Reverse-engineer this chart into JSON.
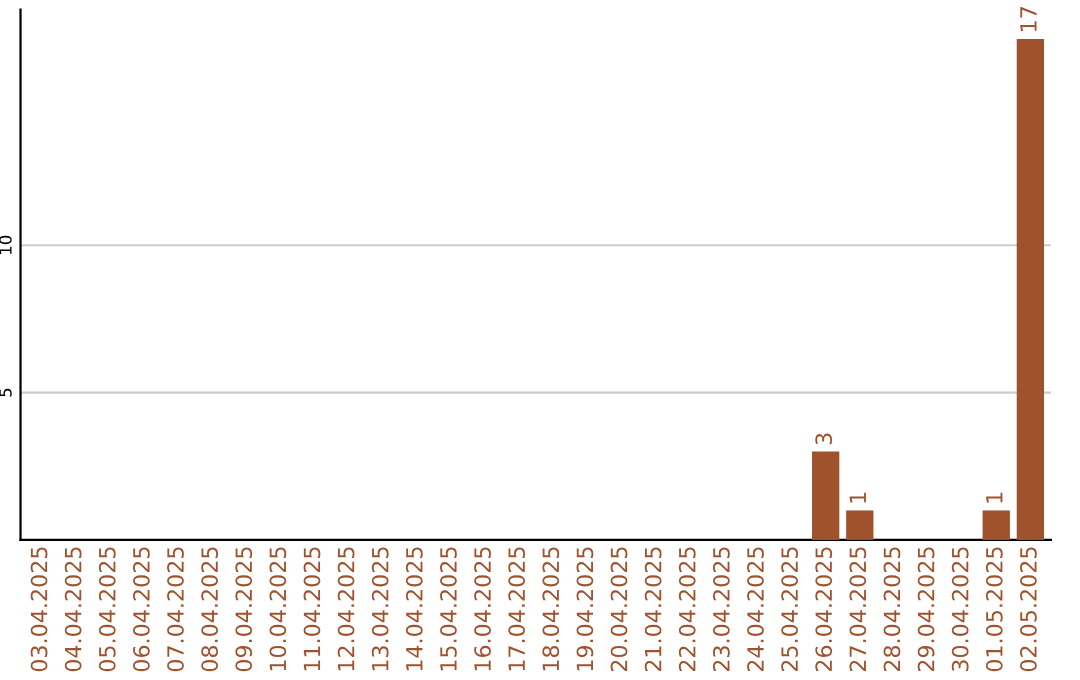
{
  "chart_data": {
    "type": "bar",
    "categories": [
      "03.04.2025",
      "04.04.2025",
      "05.04.2025",
      "06.04.2025",
      "07.04.2025",
      "08.04.2025",
      "09.04.2025",
      "10.04.2025",
      "11.04.2025",
      "12.04.2025",
      "13.04.2025",
      "14.04.2025",
      "15.04.2025",
      "16.04.2025",
      "17.04.2025",
      "18.04.2025",
      "19.04.2025",
      "20.04.2025",
      "21.04.2025",
      "22.04.2025",
      "23.04.2025",
      "24.04.2025",
      "25.04.2025",
      "26.04.2025",
      "27.04.2025",
      "28.04.2025",
      "29.04.2025",
      "30.04.2025",
      "01.05.2025",
      "02.05.2025"
    ],
    "values": [
      0,
      0,
      0,
      0,
      0,
      0,
      0,
      0,
      0,
      0,
      0,
      0,
      0,
      0,
      0,
      0,
      0,
      0,
      0,
      0,
      0,
      0,
      0,
      3,
      1,
      0,
      0,
      0,
      1,
      17
    ],
    "value_labels": [
      null,
      null,
      null,
      null,
      null,
      null,
      null,
      null,
      null,
      null,
      null,
      null,
      null,
      null,
      null,
      null,
      null,
      null,
      null,
      null,
      null,
      null,
      null,
      "3",
      "1",
      null,
      null,
      null,
      "1",
      "17"
    ],
    "color": "#a0522d",
    "ylim": [
      0,
      18
    ],
    "yticks": [
      5,
      10
    ],
    "grid": "y"
  }
}
